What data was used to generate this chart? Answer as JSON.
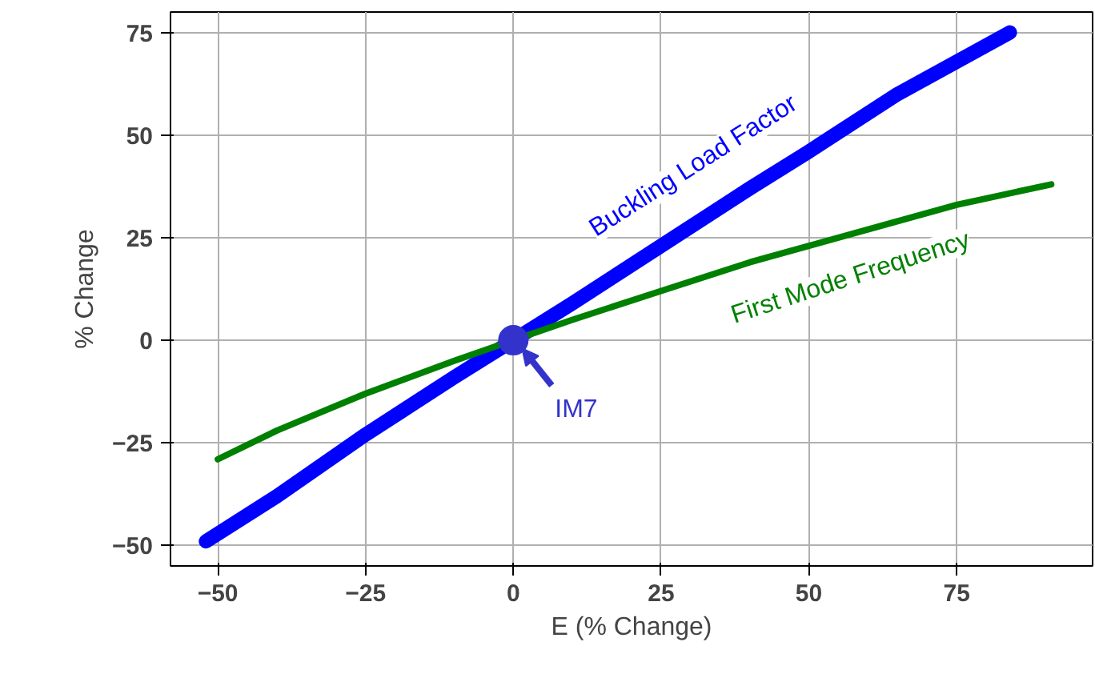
{
  "chart_data": {
    "type": "line",
    "xlabel": "E (% Change)",
    "ylabel": "% Change",
    "xlim": [
      -58,
      98
    ],
    "ylim": [
      -55,
      80
    ],
    "xticks": [
      -50,
      -25,
      0,
      25,
      50,
      75
    ],
    "yticks": [
      -50,
      -25,
      0,
      25,
      50,
      75
    ],
    "grid": true,
    "marker": "none",
    "line_style": "solid",
    "series": [
      {
        "name": "Buckling Load Factor",
        "color": "#0000ff",
        "x": [
          -52,
          -40,
          -25,
          -10,
          0,
          10,
          25,
          40,
          50,
          65,
          84
        ],
        "values": [
          -49,
          -38,
          -23,
          -9,
          0,
          9,
          23,
          37,
          46,
          60,
          75
        ]
      },
      {
        "name": "First Mode Frequency",
        "color": "#008000",
        "x": [
          -50,
          -40,
          -25,
          -10,
          0,
          10,
          25,
          40,
          50,
          65,
          75,
          91
        ],
        "values": [
          -29,
          -22,
          -13,
          -5,
          0,
          5,
          12,
          19,
          23,
          29,
          33,
          38
        ]
      }
    ],
    "annotations": [
      {
        "text": "IM7",
        "x": 0,
        "y": 0
      }
    ]
  }
}
